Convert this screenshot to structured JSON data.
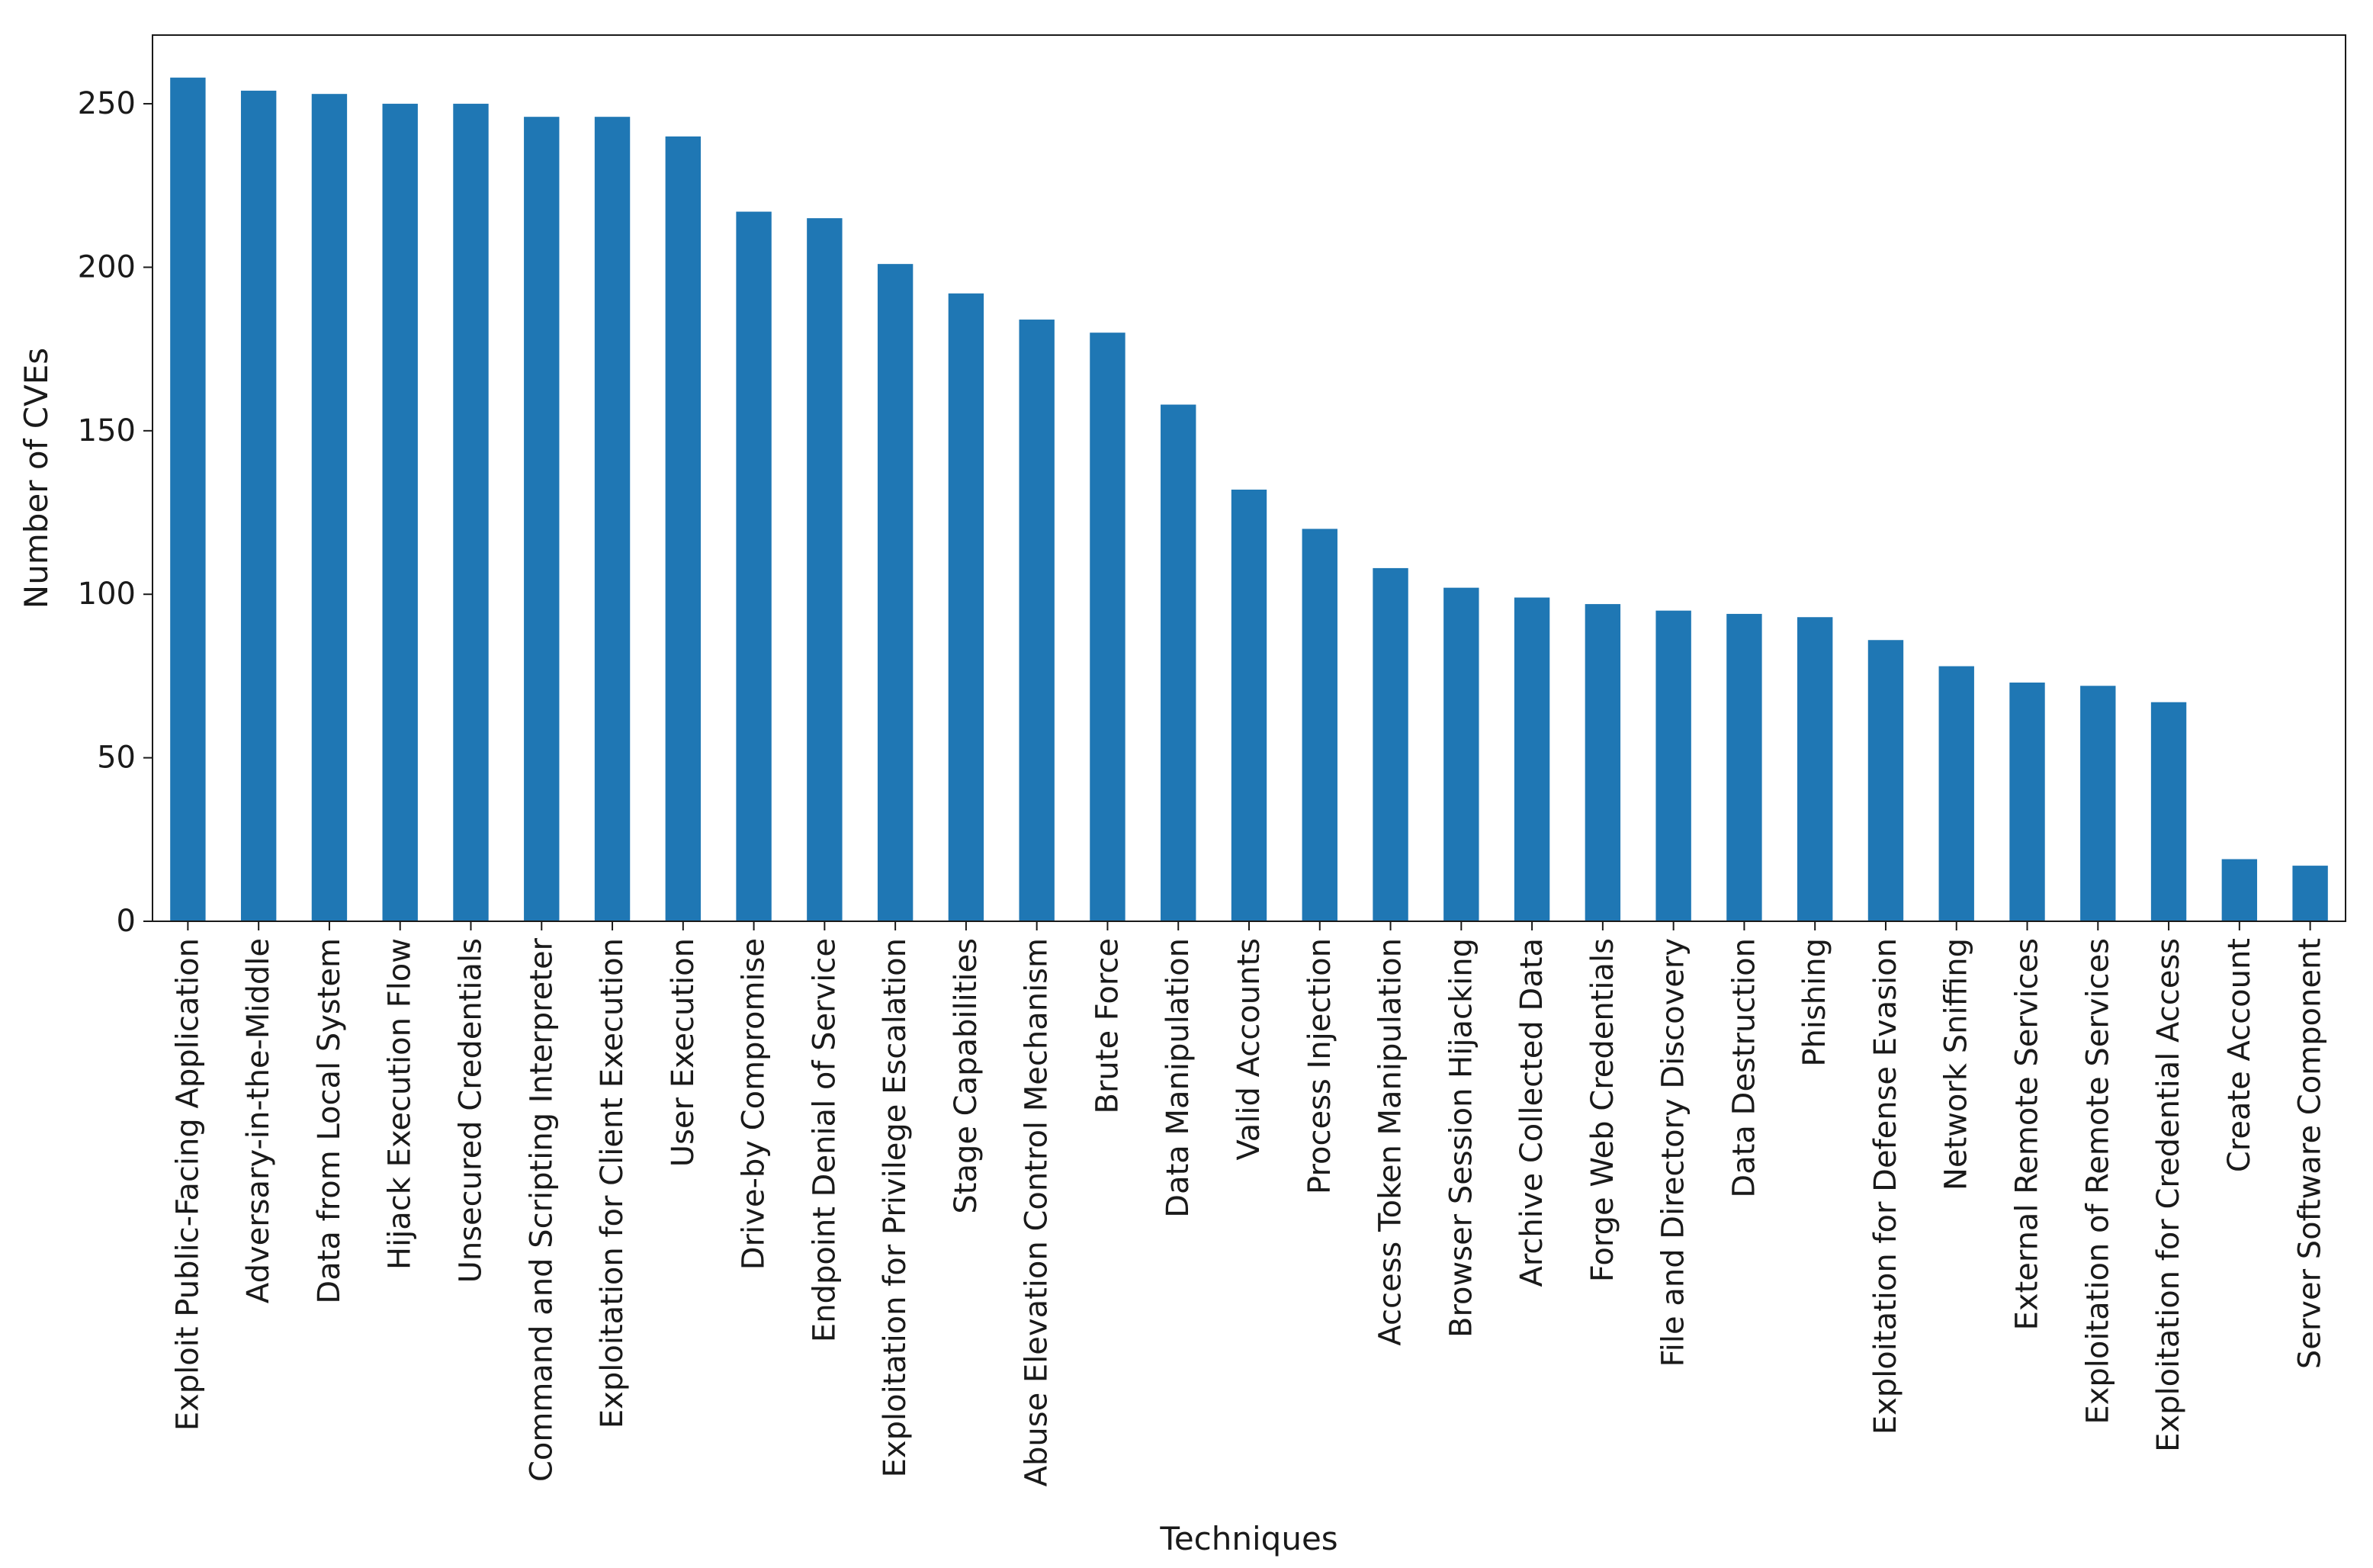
{
  "chart_data": {
    "type": "bar",
    "title": "",
    "xlabel": "Techniques",
    "ylabel": "Number of CVEs",
    "ylim": [
      0,
      271
    ],
    "yticks": [
      0,
      50,
      100,
      150,
      200,
      250
    ],
    "grid": false,
    "legend": "none",
    "bar_color": "#1f77b4",
    "categories": [
      "Exploit Public-Facing Application",
      "Adversary-in-the-Middle",
      "Data from Local System",
      "Hijack Execution Flow",
      "Unsecured Credentials",
      "Command and Scripting Interpreter",
      "Exploitation for Client Execution",
      "User Execution",
      "Drive-by Compromise",
      "Endpoint Denial of Service",
      "Exploitation for Privilege Escalation",
      "Stage Capabilities",
      "Abuse Elevation Control Mechanism",
      "Brute Force",
      "Data Manipulation",
      "Valid Accounts",
      "Process Injection",
      "Access Token Manipulation",
      "Browser Session Hijacking",
      "Archive Collected Data",
      "Forge Web Credentials",
      "File and Directory Discovery",
      "Data Destruction",
      "Phishing",
      "Exploitation for Defense Evasion",
      "Network Sniffing",
      "External Remote Services",
      "Exploitation of Remote Services",
      "Exploitation for Credential Access",
      "Create Account",
      "Server Software Component"
    ],
    "values": [
      258,
      254,
      253,
      250,
      250,
      246,
      246,
      240,
      217,
      215,
      201,
      192,
      184,
      180,
      158,
      132,
      120,
      108,
      102,
      99,
      97,
      95,
      94,
      93,
      86,
      78,
      73,
      72,
      67,
      19,
      17
    ]
  }
}
